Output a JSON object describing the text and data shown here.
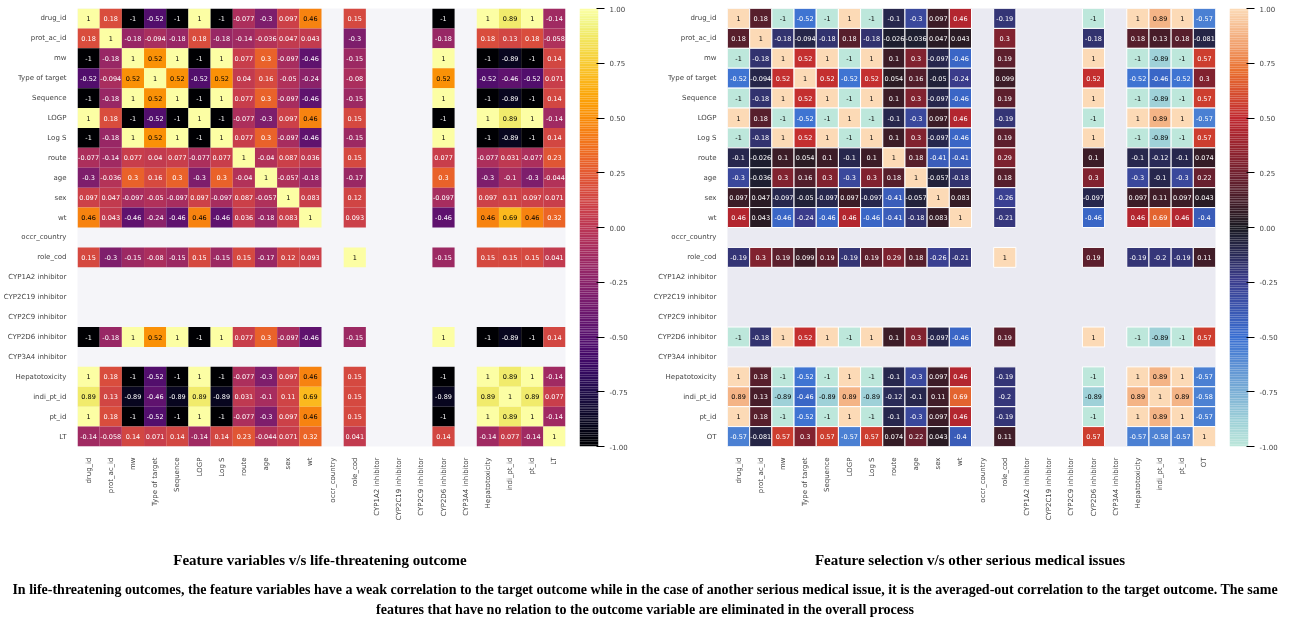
{
  "chart_data": [
    {
      "type": "heatmap",
      "title": "Feature variables v/s life-threatening outcome",
      "data_labels": true,
      "grid": false,
      "categories": [
        "drug_id",
        "prot_ac_id",
        "mw",
        "Type of target",
        "Sequence",
        "LOGP",
        "Log S",
        "route",
        "age",
        "sex",
        "wt",
        "occr_country",
        "role_cod",
        "CYP1A2 inhibitor",
        "CYP2C19 inhibitor",
        "CYP2C9 inhibitor",
        "CYP2D6 inhibitor",
        "CYP3A4 inhibitor",
        "Hepatotoxicity",
        "indi_pt_id",
        "pt_id",
        "LT"
      ],
      "y_categories": [
        "drug_id",
        "prot_ac_id",
        "mw",
        "Type of target",
        "Sequence",
        "LOGP",
        "Log S",
        "route",
        "age",
        "sex",
        "wt",
        "occr_country",
        "role_cod",
        "CYP1A2 inhibitor",
        "CYP2C19 inhibitor",
        "CYP2C9 inhibitor",
        "CYP2D6 inhibitor",
        "CYP3A4 inhibitor",
        "Hepatotoxicity",
        "indi_pt_id",
        "pt_id",
        "LT"
      ],
      "cells": [
        [
          1,
          0.18,
          -1,
          -0.52,
          -1,
          1,
          -1,
          -0.077,
          -0.3,
          0.097,
          0.46,
          null,
          0.15,
          null,
          null,
          null,
          -1,
          null,
          1,
          0.89,
          1,
          -0.14
        ],
        [
          0.18,
          1,
          -0.18,
          -0.094,
          -0.18,
          0.18,
          -0.18,
          -0.14,
          -0.036,
          0.047,
          0.043,
          null,
          -0.3,
          null,
          null,
          null,
          -0.18,
          null,
          0.18,
          0.13,
          0.18,
          -0.058
        ],
        [
          -1,
          -0.18,
          1,
          0.52,
          1,
          -1,
          1,
          0.077,
          0.3,
          -0.097,
          -0.46,
          null,
          -0.15,
          null,
          null,
          null,
          1,
          null,
          -1,
          -0.89,
          -1,
          0.14
        ],
        [
          -0.52,
          -0.094,
          0.52,
          1,
          0.52,
          -0.52,
          0.52,
          0.04,
          0.16,
          -0.05,
          -0.24,
          null,
          -0.08,
          null,
          null,
          null,
          0.52,
          null,
          -0.52,
          -0.46,
          -0.52,
          0.071
        ],
        [
          -1,
          -0.18,
          1,
          0.52,
          1,
          -1,
          1,
          0.077,
          0.3,
          -0.097,
          -0.46,
          null,
          -0.15,
          null,
          null,
          null,
          1,
          null,
          -1,
          -0.89,
          -1,
          0.14
        ],
        [
          1,
          0.18,
          -1,
          -0.52,
          -1,
          1,
          -1,
          -0.077,
          -0.3,
          0.097,
          0.46,
          null,
          0.15,
          null,
          null,
          null,
          -1,
          null,
          1,
          0.89,
          1,
          -0.14
        ],
        [
          -1,
          -0.18,
          1,
          0.52,
          1,
          -1,
          1,
          0.077,
          0.3,
          -0.097,
          -0.46,
          null,
          -0.15,
          null,
          null,
          null,
          1,
          null,
          -1,
          -0.89,
          -1,
          0.14
        ],
        [
          -0.077,
          -0.14,
          0.077,
          0.04,
          0.077,
          -0.077,
          0.077,
          1,
          -0.04,
          0.087,
          0.036,
          null,
          0.15,
          null,
          null,
          null,
          0.077,
          null,
          -0.077,
          0.031,
          -0.077,
          0.23
        ],
        [
          -0.3,
          -0.036,
          0.3,
          0.16,
          0.3,
          -0.3,
          0.3,
          -0.04,
          1,
          -0.057,
          -0.18,
          null,
          -0.17,
          null,
          null,
          null,
          0.3,
          null,
          -0.3,
          -0.1,
          -0.3,
          -0.044
        ],
        [
          0.097,
          0.047,
          -0.097,
          -0.05,
          -0.097,
          0.097,
          -0.097,
          0.087,
          -0.057,
          1,
          0.083,
          null,
          0.12,
          null,
          null,
          null,
          -0.097,
          null,
          0.097,
          0.11,
          0.097,
          0.071
        ],
        [
          0.46,
          0.043,
          -0.46,
          -0.24,
          -0.46,
          0.46,
          -0.46,
          0.036,
          -0.18,
          0.083,
          1,
          null,
          0.093,
          null,
          null,
          null,
          -0.46,
          null,
          0.46,
          0.69,
          0.46,
          0.32
        ],
        [
          null,
          null,
          null,
          null,
          null,
          null,
          null,
          null,
          null,
          null,
          null,
          null,
          null,
          null,
          null,
          null,
          null,
          null,
          null,
          null,
          null,
          null
        ],
        [
          0.15,
          -0.3,
          -0.15,
          -0.08,
          -0.15,
          0.15,
          -0.15,
          0.15,
          -0.17,
          0.12,
          0.093,
          null,
          1,
          null,
          null,
          null,
          -0.15,
          null,
          0.15,
          0.15,
          0.15,
          0.041
        ],
        [
          null,
          null,
          null,
          null,
          null,
          null,
          null,
          null,
          null,
          null,
          null,
          null,
          null,
          null,
          null,
          null,
          null,
          null,
          null,
          null,
          null,
          null
        ],
        [
          null,
          null,
          null,
          null,
          null,
          null,
          null,
          null,
          null,
          null,
          null,
          null,
          null,
          null,
          null,
          null,
          null,
          null,
          null,
          null,
          null,
          null
        ],
        [
          null,
          null,
          null,
          null,
          null,
          null,
          null,
          null,
          null,
          null,
          null,
          null,
          null,
          null,
          null,
          null,
          null,
          null,
          null,
          null,
          null,
          null
        ],
        [
          -1,
          -0.18,
          1,
          0.52,
          1,
          -1,
          1,
          0.077,
          0.3,
          -0.097,
          -0.46,
          null,
          -0.15,
          null,
          null,
          null,
          1,
          null,
          -1,
          -0.89,
          -1,
          0.14
        ],
        [
          null,
          null,
          null,
          null,
          null,
          null,
          null,
          null,
          null,
          null,
          null,
          null,
          null,
          null,
          null,
          null,
          null,
          null,
          null,
          null,
          null,
          null
        ],
        [
          1,
          0.18,
          -1,
          -0.52,
          -1,
          1,
          -1,
          -0.077,
          -0.3,
          0.097,
          0.46,
          null,
          0.15,
          null,
          null,
          null,
          -1,
          null,
          1,
          0.89,
          1,
          -0.14
        ],
        [
          0.89,
          0.13,
          -0.89,
          -0.46,
          -0.89,
          0.89,
          -0.89,
          0.031,
          -0.1,
          0.11,
          0.69,
          null,
          0.15,
          null,
          null,
          null,
          -0.89,
          null,
          0.89,
          1,
          0.89,
          0.077
        ],
        [
          1,
          0.18,
          -1,
          -0.52,
          -1,
          1,
          -1,
          -0.077,
          -0.3,
          0.097,
          0.46,
          null,
          0.15,
          null,
          null,
          null,
          -1,
          null,
          1,
          0.89,
          1,
          -0.14
        ],
        [
          -0.14,
          -0.058,
          0.14,
          0.071,
          0.14,
          -0.14,
          0.14,
          0.23,
          -0.044,
          0.071,
          0.32,
          null,
          0.041,
          null,
          null,
          null,
          0.14,
          null,
          -0.14,
          0.077,
          -0.14,
          1
        ]
      ],
      "clim": [
        -1,
        1
      ],
      "cticks": [
        {
          "value": 1,
          "label": "1.00"
        },
        {
          "value": 0.75,
          "label": "0.75"
        },
        {
          "value": 0.5,
          "label": "0.50"
        },
        {
          "value": 0.25,
          "label": "0.25"
        },
        {
          "value": 0,
          "label": "0.00"
        },
        {
          "value": -0.25,
          "label": "-0.25"
        },
        {
          "value": -0.5,
          "label": "-0.50"
        },
        {
          "value": -0.75,
          "label": "-0.75"
        },
        {
          "value": -1,
          "label": "-1.00"
        }
      ],
      "annotations": [
        "In life-threatening outcomes, the feature variables have a weak correlation to the target outcome while in the case of another serious medical issue, it is the averaged-out correlation to the target outcome. The same features that have no relation to the outcome variable are eliminated in the overall process"
      ]
    },
    {
      "type": "heatmap",
      "title": "Feature selection v/s other serious medical issues",
      "data_labels": true,
      "grid": false,
      "categories": [
        "drug_id",
        "prot_ac_id",
        "mw",
        "Type of target",
        "Sequence",
        "LOGP",
        "Log S",
        "route",
        "age",
        "sex",
        "wt",
        "occr_country",
        "role_cod",
        "CYP1A2 inhibitor",
        "CYP2C19 inhibitor",
        "CYP2C9 inhibitor",
        "CYP2D6 inhibitor",
        "CYP3A4 inhibitor",
        "Hepatotoxicity",
        "indi_pt_id",
        "pt_id",
        "OT"
      ],
      "y_categories": [
        "drug_id",
        "prot_ac_id",
        "mw",
        "Type of target",
        "Sequence",
        "LOGP",
        "Log S",
        "route",
        "age",
        "sex",
        "wt",
        "occr_country",
        "role_cod",
        "CYP1A2 inhibitor",
        "CYP2C19 inhibitor",
        "CYP2C9 inhibitor",
        "CYP2D6 inhibitor",
        "CYP3A4 inhibitor",
        "Hepatotoxicity",
        "indi_pt_id",
        "pt_id",
        "OT"
      ],
      "cells": [
        [
          1,
          0.18,
          -1,
          -0.52,
          -1,
          1,
          -1,
          -0.1,
          -0.3,
          0.097,
          0.46,
          null,
          -0.19,
          null,
          null,
          null,
          -1,
          null,
          1,
          0.89,
          1,
          -0.57
        ],
        [
          0.18,
          1,
          -0.18,
          -0.094,
          -0.18,
          0.18,
          -0.18,
          -0.026,
          -0.036,
          0.047,
          0.043,
          null,
          0.3,
          null,
          null,
          null,
          -0.18,
          null,
          0.18,
          0.13,
          0.18,
          -0.081
        ],
        [
          -1,
          -0.18,
          1,
          0.52,
          1,
          -1,
          1,
          0.1,
          0.3,
          -0.097,
          -0.46,
          null,
          0.19,
          null,
          null,
          null,
          1,
          null,
          -1,
          -0.89,
          -1,
          0.57
        ],
        [
          -0.52,
          -0.094,
          0.52,
          1,
          0.52,
          -0.52,
          0.52,
          0.054,
          0.16,
          -0.05,
          -0.24,
          null,
          0.099,
          null,
          null,
          null,
          0.52,
          null,
          -0.52,
          -0.46,
          -0.52,
          0.3
        ],
        [
          -1,
          -0.18,
          1,
          0.52,
          1,
          -1,
          1,
          0.1,
          0.3,
          -0.097,
          -0.46,
          null,
          0.19,
          null,
          null,
          null,
          1,
          null,
          -1,
          -0.89,
          -1,
          0.57
        ],
        [
          1,
          0.18,
          -1,
          -0.52,
          -1,
          1,
          -1,
          -0.1,
          -0.3,
          0.097,
          0.46,
          null,
          -0.19,
          null,
          null,
          null,
          -1,
          null,
          1,
          0.89,
          1,
          -0.57
        ],
        [
          -1,
          -0.18,
          1,
          0.52,
          1,
          -1,
          1,
          0.1,
          0.3,
          -0.097,
          -0.46,
          null,
          0.19,
          null,
          null,
          null,
          1,
          null,
          -1,
          -0.89,
          -1,
          0.57
        ],
        [
          -0.1,
          -0.026,
          0.1,
          0.054,
          0.1,
          -0.1,
          0.1,
          1,
          0.18,
          -0.41,
          -0.41,
          null,
          0.29,
          null,
          null,
          null,
          0.1,
          null,
          -0.1,
          -0.12,
          -0.1,
          0.074
        ],
        [
          -0.3,
          -0.036,
          0.3,
          0.16,
          0.3,
          -0.3,
          0.3,
          0.18,
          1,
          -0.057,
          -0.18,
          null,
          0.18,
          null,
          null,
          null,
          0.3,
          null,
          -0.3,
          -0.1,
          -0.3,
          0.22
        ],
        [
          0.097,
          0.047,
          -0.097,
          -0.05,
          -0.097,
          0.097,
          -0.097,
          -0.41,
          -0.057,
          1,
          0.083,
          null,
          -0.26,
          null,
          null,
          null,
          -0.097,
          null,
          0.097,
          0.11,
          0.097,
          0.043
        ],
        [
          0.46,
          0.043,
          -0.46,
          -0.24,
          -0.46,
          0.46,
          -0.46,
          -0.41,
          -0.18,
          0.083,
          1,
          null,
          -0.21,
          null,
          null,
          null,
          -0.46,
          null,
          0.46,
          0.69,
          0.46,
          -0.4
        ],
        [
          null,
          null,
          null,
          null,
          null,
          null,
          null,
          null,
          null,
          null,
          null,
          null,
          null,
          null,
          null,
          null,
          null,
          null,
          null,
          null,
          null,
          null
        ],
        [
          -0.19,
          0.3,
          0.19,
          0.099,
          0.19,
          -0.19,
          0.19,
          0.29,
          0.18,
          -0.26,
          -0.21,
          null,
          1,
          null,
          null,
          null,
          0.19,
          null,
          -0.19,
          -0.2,
          -0.19,
          0.11
        ],
        [
          null,
          null,
          null,
          null,
          null,
          null,
          null,
          null,
          null,
          null,
          null,
          null,
          null,
          null,
          null,
          null,
          null,
          null,
          null,
          null,
          null,
          null
        ],
        [
          null,
          null,
          null,
          null,
          null,
          null,
          null,
          null,
          null,
          null,
          null,
          null,
          null,
          null,
          null,
          null,
          null,
          null,
          null,
          null,
          null,
          null
        ],
        [
          null,
          null,
          null,
          null,
          null,
          null,
          null,
          null,
          null,
          null,
          null,
          null,
          null,
          null,
          null,
          null,
          null,
          null,
          null,
          null,
          null,
          null
        ],
        [
          -1,
          -0.18,
          1,
          0.52,
          1,
          -1,
          1,
          0.1,
          0.3,
          -0.097,
          -0.46,
          null,
          0.19,
          null,
          null,
          null,
          1,
          null,
          -1,
          -0.89,
          -1,
          0.57
        ],
        [
          null,
          null,
          null,
          null,
          null,
          null,
          null,
          null,
          null,
          null,
          null,
          null,
          null,
          null,
          null,
          null,
          null,
          null,
          null,
          null,
          null,
          null
        ],
        [
          1,
          0.18,
          -1,
          -0.52,
          -1,
          1,
          -1,
          -0.1,
          -0.3,
          0.097,
          0.46,
          null,
          -0.19,
          null,
          null,
          null,
          -1,
          null,
          1,
          0.89,
          1,
          -0.57
        ],
        [
          0.89,
          0.13,
          -0.89,
          -0.46,
          -0.89,
          0.89,
          -0.89,
          -0.12,
          -0.1,
          0.11,
          0.69,
          null,
          -0.2,
          null,
          null,
          null,
          -0.89,
          null,
          0.89,
          1,
          0.89,
          -0.58
        ],
        [
          1,
          0.18,
          -1,
          -0.52,
          -1,
          1,
          -1,
          -0.1,
          -0.3,
          0.097,
          0.46,
          null,
          -0.19,
          null,
          null,
          null,
          -1,
          null,
          1,
          0.89,
          1,
          -0.57
        ],
        [
          -0.57,
          -0.081,
          0.57,
          0.3,
          0.57,
          -0.57,
          0.57,
          0.074,
          0.22,
          0.043,
          -0.4,
          null,
          0.11,
          null,
          null,
          null,
          0.57,
          null,
          -0.57,
          -0.58,
          -0.57,
          1
        ]
      ],
      "clim": [
        -1,
        1
      ],
      "cticks": [
        {
          "value": 1,
          "label": "1.00"
        },
        {
          "value": 0.75,
          "label": "0.75"
        },
        {
          "value": 0.5,
          "label": "0.50"
        },
        {
          "value": 0.25,
          "label": "0.25"
        },
        {
          "value": 0,
          "label": "0.00"
        },
        {
          "value": -0.25,
          "label": "-0.25"
        },
        {
          "value": -0.5,
          "label": "-0.50"
        },
        {
          "value": -0.75,
          "label": "-0.75"
        },
        {
          "value": -1,
          "label": "-1.00"
        }
      ]
    }
  ]
}
